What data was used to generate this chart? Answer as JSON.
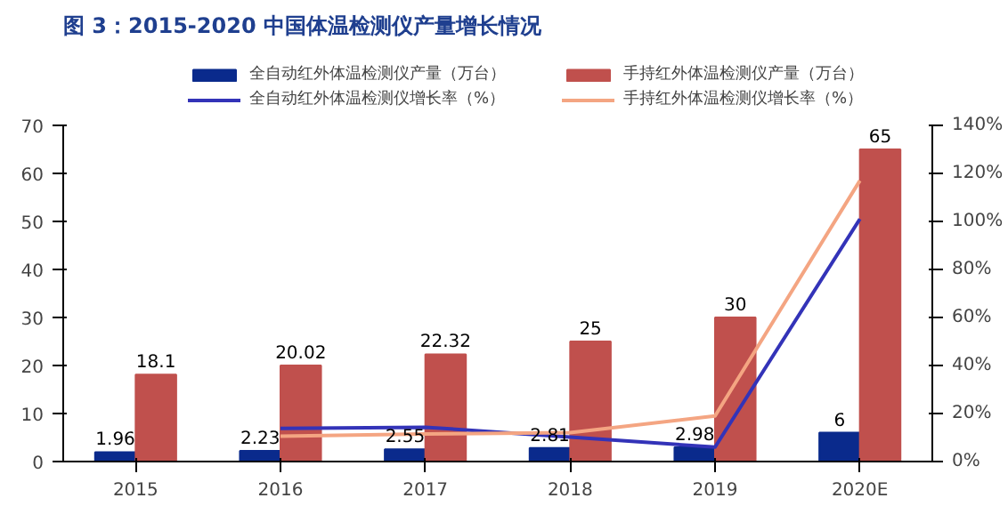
{
  "chart_data": {
    "type": "bar",
    "title": "图 3：2015-2020 中国体温检测仪产量增长情况",
    "categories": [
      "2015",
      "2016",
      "2017",
      "2018",
      "2019",
      "2020E"
    ],
    "series": [
      {
        "name": "全自动红外体温检测仪产量（万台）",
        "color": "#0a2a8c",
        "values": [
          1.96,
          2.23,
          2.55,
          2.81,
          2.98,
          6
        ],
        "value_labels": [
          "1.96",
          "2.23",
          "2.55",
          "2.81",
          "2.98",
          "6"
        ]
      },
      {
        "name": "手持红外体温检测仪产量（万台）",
        "color": "#c0504d",
        "values": [
          18.1,
          20.02,
          22.32,
          25,
          30,
          65
        ],
        "value_labels": [
          "18.1",
          "20.02",
          "22.32",
          "25",
          "30",
          "65"
        ]
      },
      {
        "name": "全自动红外体温检测仪增长率（%）",
        "type": "line",
        "axis": "y2",
        "color": "#3333b8",
        "values": [
          null,
          13.8,
          14.3,
          10.2,
          6,
          101
        ]
      },
      {
        "name": "手持红外体温检测仪增长率（%）",
        "type": "line",
        "axis": "y2",
        "color": "#f4a582",
        "values": [
          null,
          10.6,
          11.5,
          12,
          19,
          117
        ]
      }
    ],
    "ylim": [
      0,
      70
    ],
    "yticks": [
      0,
      10,
      20,
      30,
      40,
      50,
      60,
      70
    ],
    "y2lim": [
      0,
      140
    ],
    "y2ticks": [
      {
        "value": 0,
        "label": "0%"
      },
      {
        "value": 20,
        "label": "20%"
      },
      {
        "value": 40,
        "label": "40%"
      },
      {
        "value": 60,
        "label": "60%"
      },
      {
        "value": 80,
        "label": "80%"
      },
      {
        "value": 100,
        "label": "100%"
      },
      {
        "value": 120,
        "label": "120%"
      },
      {
        "value": 140,
        "label": "140%"
      }
    ],
    "grid": false,
    "legend": "top"
  }
}
